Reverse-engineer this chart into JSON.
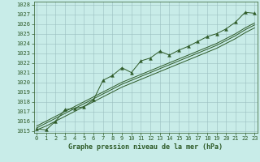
{
  "title": "Graphe pression niveau de la mer (hPa)",
  "bg_color": "#c8ece8",
  "grid_color": "#9abfbf",
  "line_color": "#2d5a27",
  "xlim": [
    -0.3,
    23.3
  ],
  "ylim": [
    1014.8,
    1028.3
  ],
  "xticks": [
    0,
    1,
    2,
    3,
    4,
    5,
    6,
    7,
    8,
    9,
    10,
    11,
    12,
    13,
    14,
    15,
    16,
    17,
    18,
    19,
    20,
    21,
    22,
    23
  ],
  "yticks": [
    1015,
    1016,
    1017,
    1018,
    1019,
    1020,
    1021,
    1022,
    1023,
    1024,
    1025,
    1026,
    1027,
    1028
  ],
  "main_data": [
    1015.2,
    1015.1,
    1016.0,
    1017.2,
    1017.3,
    1017.5,
    1018.2,
    1020.2,
    1020.7,
    1021.5,
    1021.0,
    1022.2,
    1022.5,
    1023.2,
    1022.8,
    1023.3,
    1023.7,
    1024.2,
    1024.7,
    1025.0,
    1025.5,
    1026.2,
    1027.2,
    1027.1
  ],
  "smooth1": [
    1015.5,
    1016.0,
    1016.5,
    1017.0,
    1017.5,
    1018.0,
    1018.5,
    1019.0,
    1019.5,
    1020.0,
    1020.4,
    1020.8,
    1021.2,
    1021.6,
    1022.0,
    1022.4,
    1022.8,
    1023.2,
    1023.6,
    1024.0,
    1024.5,
    1025.0,
    1025.6,
    1026.1
  ],
  "smooth2": [
    1015.3,
    1015.8,
    1016.3,
    1016.8,
    1017.3,
    1017.8,
    1018.3,
    1018.8,
    1019.3,
    1019.8,
    1020.2,
    1020.6,
    1021.0,
    1021.4,
    1021.8,
    1022.2,
    1022.6,
    1023.0,
    1023.4,
    1023.8,
    1024.3,
    1024.8,
    1025.4,
    1025.9
  ],
  "smooth3": [
    1015.1,
    1015.5,
    1016.0,
    1016.5,
    1017.0,
    1017.5,
    1018.0,
    1018.5,
    1019.0,
    1019.5,
    1019.9,
    1020.3,
    1020.7,
    1021.1,
    1021.5,
    1021.9,
    1022.3,
    1022.7,
    1023.1,
    1023.5,
    1024.0,
    1024.5,
    1025.1,
    1025.6
  ],
  "tick_fontsize": 5.0,
  "title_fontsize": 6.0,
  "marker_size": 2.8,
  "line_width": 0.7
}
